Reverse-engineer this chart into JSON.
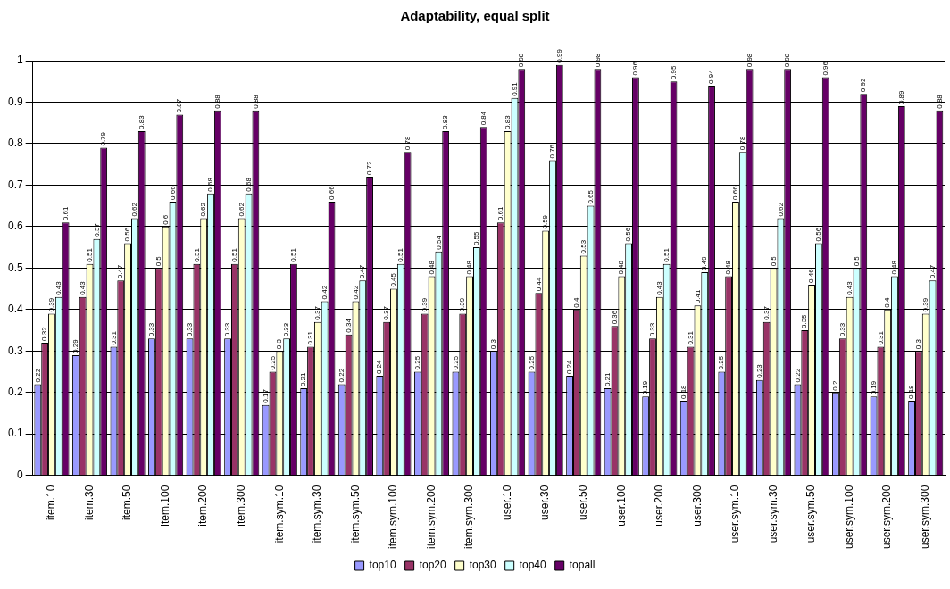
{
  "chart_data": {
    "type": "bar",
    "title": "Adaptability, equal split",
    "categories": [
      "item.10",
      "item.30",
      "item.50",
      "item.100",
      "item.200",
      "item.300",
      "item.sym.10",
      "item.sym.30",
      "item.sym.50",
      "item.sym.100",
      "item.sym.200",
      "item.sym.300",
      "user.10",
      "user.30",
      "user.50",
      "user.100",
      "user.200",
      "user.300",
      "user.sym.10",
      "user.sym.30",
      "user.sym.50",
      "user.sym.100",
      "user.sym.200",
      "user.sym.300"
    ],
    "series": [
      {
        "name": "top10",
        "color": "#9999ff",
        "values": [
          0.22,
          0.29,
          0.31,
          0.33,
          0.33,
          0.33,
          0.17,
          0.21,
          0.22,
          0.24,
          0.25,
          0.25,
          0.3,
          0.25,
          0.24,
          0.21,
          0.19,
          0.18,
          0.25,
          0.23,
          0.22,
          0.2,
          0.19,
          0.18
        ]
      },
      {
        "name": "top20",
        "color": "#993366",
        "values": [
          0.32,
          0.43,
          0.47,
          0.5,
          0.51,
          0.51,
          0.25,
          0.31,
          0.34,
          0.37,
          0.39,
          0.39,
          0.61,
          0.44,
          0.4,
          0.36,
          0.33,
          0.31,
          0.48,
          0.37,
          0.35,
          0.33,
          0.31,
          0.3
        ]
      },
      {
        "name": "top30",
        "color": "#ffffcc",
        "values": [
          0.39,
          0.51,
          0.56,
          0.6,
          0.62,
          0.62,
          0.3,
          0.37,
          0.42,
          0.45,
          0.48,
          0.48,
          0.83,
          0.59,
          0.53,
          0.48,
          0.43,
          0.41,
          0.66,
          0.5,
          0.46,
          0.43,
          0.4,
          0.39
        ]
      },
      {
        "name": "top40",
        "color": "#ccffff",
        "values": [
          0.43,
          0.57,
          0.62,
          0.66,
          0.68,
          0.68,
          0.33,
          0.42,
          0.47,
          0.51,
          0.54,
          0.55,
          0.91,
          0.76,
          0.65,
          0.56,
          0.51,
          0.49,
          0.78,
          0.62,
          0.56,
          0.5,
          0.48,
          0.47
        ]
      },
      {
        "name": "topall",
        "color": "#660066",
        "values": [
          0.61,
          0.79,
          0.83,
          0.87,
          0.88,
          0.88,
          0.51,
          0.66,
          0.72,
          0.78,
          0.83,
          0.84,
          0.98,
          0.99,
          0.98,
          0.96,
          0.95,
          0.94,
          0.98,
          0.98,
          0.96,
          0.92,
          0.89,
          0.88
        ]
      }
    ],
    "ylim": [
      0,
      1
    ],
    "yticks": [
      0,
      0.1,
      0.2,
      0.3,
      0.4,
      0.5,
      0.6,
      0.7,
      0.8,
      0.9,
      1
    ],
    "grid": "y",
    "legend": "bottom",
    "data_labels": true
  }
}
